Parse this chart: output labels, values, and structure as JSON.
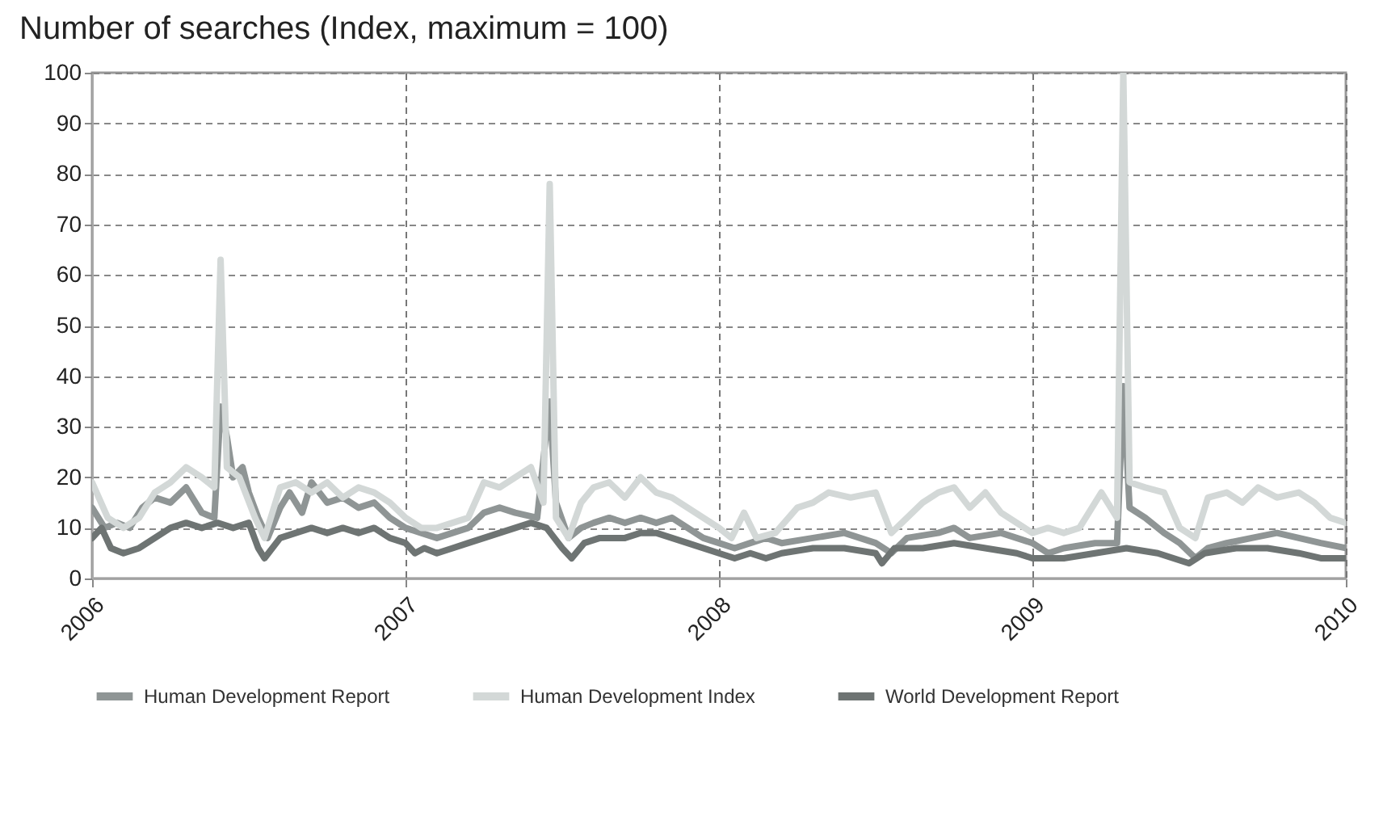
{
  "chart_data": {
    "type": "line",
    "title": "Number of searches (Index, maximum = 100)",
    "xlim": [
      2006,
      2010
    ],
    "xticks": [
      2006,
      2007,
      2008,
      2009,
      2010
    ],
    "ylim": [
      0,
      100
    ],
    "yticks": [
      0,
      10,
      20,
      30,
      40,
      50,
      60,
      70,
      80,
      90,
      100
    ],
    "grid": true,
    "legend": "bottom",
    "line_style": "solid",
    "series": [
      {
        "name": "Human Development Report",
        "color": "#8f9595",
        "x": [
          2006.0,
          2006.04,
          2006.08,
          2006.12,
          2006.16,
          2006.2,
          2006.25,
          2006.3,
          2006.35,
          2006.39,
          2006.41,
          2006.43,
          2006.45,
          2006.48,
          2006.5,
          2006.53,
          2006.56,
          2006.6,
          2006.63,
          2006.67,
          2006.7,
          2006.75,
          2006.8,
          2006.85,
          2006.9,
          2006.95,
          2007.0,
          2007.05,
          2007.1,
          2007.15,
          2007.2,
          2007.25,
          2007.3,
          2007.35,
          2007.42,
          2007.46,
          2007.48,
          2007.52,
          2007.56,
          2007.6,
          2007.65,
          2007.7,
          2007.75,
          2007.8,
          2007.85,
          2007.9,
          2007.95,
          2008.0,
          2008.05,
          2008.1,
          2008.15,
          2008.2,
          2008.3,
          2008.4,
          2008.5,
          2008.55,
          2008.6,
          2008.7,
          2008.75,
          2008.8,
          2008.9,
          2009.0,
          2009.05,
          2009.1,
          2009.2,
          2009.27,
          2009.29,
          2009.31,
          2009.36,
          2009.42,
          2009.47,
          2009.52,
          2009.56,
          2009.62,
          2009.7,
          2009.78,
          2009.85,
          2009.92,
          2010.0
        ],
        "values": [
          14,
          10,
          11,
          10,
          14,
          16,
          15,
          18,
          13,
          12,
          34,
          28,
          20,
          22,
          17,
          12,
          8,
          14,
          17,
          13,
          19,
          15,
          16,
          14,
          15,
          12,
          10,
          9,
          8,
          9,
          10,
          13,
          14,
          13,
          12,
          35,
          15,
          8,
          10,
          11,
          12,
          11,
          12,
          11,
          12,
          10,
          8,
          7,
          6,
          7,
          8,
          7,
          8,
          9,
          7,
          5,
          8,
          9,
          10,
          8,
          9,
          7,
          5,
          6,
          7,
          7,
          38,
          14,
          12,
          9,
          7,
          4,
          6,
          7,
          8,
          9,
          8,
          7,
          6
        ]
      },
      {
        "name": "Human Development Index",
        "color": "#d3d8d7",
        "x": [
          2006.0,
          2006.05,
          2006.1,
          2006.15,
          2006.2,
          2006.25,
          2006.3,
          2006.35,
          2006.39,
          2006.41,
          2006.43,
          2006.47,
          2006.52,
          2006.55,
          2006.6,
          2006.65,
          2006.7,
          2006.75,
          2006.8,
          2006.85,
          2006.9,
          2006.95,
          2007.0,
          2007.05,
          2007.1,
          2007.15,
          2007.2,
          2007.25,
          2007.3,
          2007.35,
          2007.4,
          2007.44,
          2007.46,
          2007.48,
          2007.52,
          2007.56,
          2007.6,
          2007.65,
          2007.7,
          2007.75,
          2007.8,
          2007.85,
          2007.9,
          2007.95,
          2008.0,
          2008.04,
          2008.08,
          2008.12,
          2008.18,
          2008.25,
          2008.3,
          2008.35,
          2008.42,
          2008.5,
          2008.55,
          2008.6,
          2008.65,
          2008.7,
          2008.75,
          2008.8,
          2008.85,
          2008.9,
          2008.95,
          2009.0,
          2009.05,
          2009.1,
          2009.15,
          2009.22,
          2009.27,
          2009.29,
          2009.31,
          2009.36,
          2009.42,
          2009.47,
          2009.52,
          2009.56,
          2009.62,
          2009.67,
          2009.72,
          2009.78,
          2009.85,
          2009.9,
          2009.95,
          2010.0
        ],
        "values": [
          19,
          12,
          10,
          12,
          17,
          19,
          22,
          20,
          18,
          63,
          22,
          20,
          12,
          8,
          18,
          19,
          17,
          19,
          16,
          18,
          17,
          15,
          12,
          10,
          10,
          11,
          12,
          19,
          18,
          20,
          22,
          15,
          78,
          12,
          8,
          15,
          18,
          19,
          16,
          20,
          17,
          16,
          14,
          12,
          10,
          8,
          13,
          8,
          9,
          14,
          15,
          17,
          16,
          17,
          9,
          12,
          15,
          17,
          18,
          14,
          17,
          13,
          11,
          9,
          10,
          9,
          10,
          17,
          12,
          100,
          19,
          18,
          17,
          10,
          8,
          16,
          17,
          15,
          18,
          16,
          17,
          15,
          12,
          11
        ]
      },
      {
        "name": "World Development Report",
        "color": "#6e7473",
        "x": [
          2006.0,
          2006.03,
          2006.06,
          2006.1,
          2006.15,
          2006.2,
          2006.25,
          2006.3,
          2006.35,
          2006.4,
          2006.45,
          2006.5,
          2006.53,
          2006.55,
          2006.6,
          2006.65,
          2006.7,
          2006.75,
          2006.8,
          2006.85,
          2006.9,
          2006.95,
          2007.0,
          2007.03,
          2007.06,
          2007.1,
          2007.15,
          2007.2,
          2007.25,
          2007.3,
          2007.35,
          2007.4,
          2007.45,
          2007.5,
          2007.53,
          2007.57,
          2007.62,
          2007.7,
          2007.75,
          2007.8,
          2007.85,
          2007.9,
          2008.0,
          2008.05,
          2008.1,
          2008.15,
          2008.2,
          2008.3,
          2008.4,
          2008.5,
          2008.52,
          2008.56,
          2008.65,
          2008.75,
          2008.85,
          2008.95,
          2009.0,
          2009.1,
          2009.2,
          2009.3,
          2009.4,
          2009.5,
          2009.55,
          2009.65,
          2009.75,
          2009.85,
          2009.92,
          2010.0
        ],
        "values": [
          8,
          10,
          6,
          5,
          6,
          8,
          10,
          11,
          10,
          11,
          10,
          11,
          6,
          4,
          8,
          9,
          10,
          9,
          10,
          9,
          10,
          8,
          7,
          5,
          6,
          5,
          6,
          7,
          8,
          9,
          10,
          11,
          10,
          6,
          4,
          7,
          8,
          8,
          9,
          9,
          8,
          7,
          5,
          4,
          5,
          4,
          5,
          6,
          6,
          5,
          3,
          6,
          6,
          7,
          6,
          5,
          4,
          4,
          5,
          6,
          5,
          3,
          5,
          6,
          6,
          5,
          4,
          4
        ]
      }
    ]
  }
}
